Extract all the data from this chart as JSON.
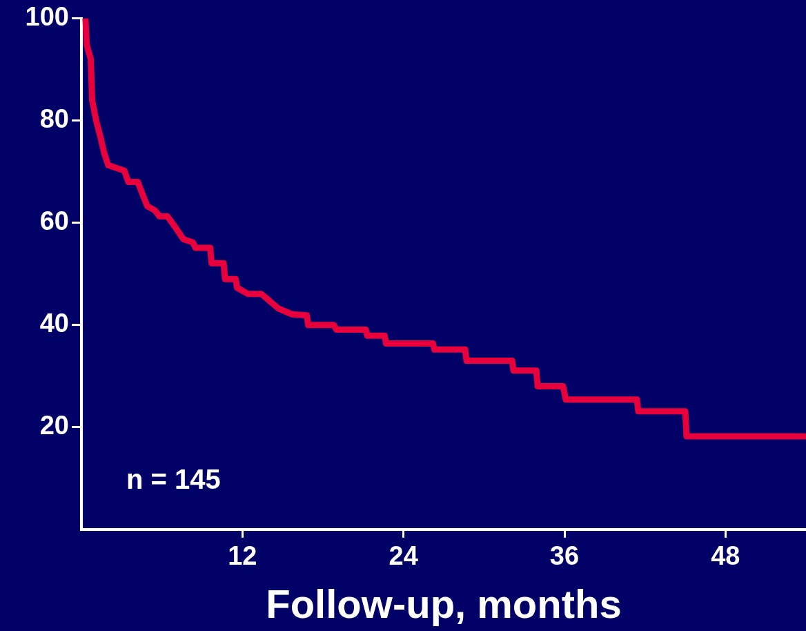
{
  "chart_data": {
    "type": "line",
    "xlabel": "Follow-up, months",
    "annotations": [
      "n = 145"
    ],
    "xlim": [
      0,
      54
    ],
    "xticks": [
      12,
      24,
      36,
      48
    ],
    "ylim": [
      0,
      100
    ],
    "yticks": [
      20,
      40,
      60,
      80,
      100
    ],
    "grid": false,
    "legend": false,
    "marker": "none",
    "line_style": "solid",
    "series": [
      {
        "color": "#e8003c",
        "x": [
          0.3,
          0.4,
          0.7,
          0.8,
          1.1,
          1.4,
          1.7,
          2.0,
          3.2,
          3.5,
          4.2,
          4.9,
          5.5,
          5.8,
          6.4,
          6.9,
          7.6,
          8.3,
          8.5,
          9.6,
          9.7,
          10.6,
          10.7,
          11.5,
          11.6,
          12.4,
          13.4,
          14.7,
          15.7,
          16.8,
          16.9,
          18.8,
          19.0,
          21.2,
          21.3,
          22.6,
          22.7,
          26.2,
          26.3,
          28.6,
          28.7,
          32.1,
          32.2,
          33.9,
          34.0,
          35.9,
          36.1,
          41.4,
          41.5,
          45.0,
          45.1,
          53.9
        ],
        "values": [
          100,
          94.8,
          92,
          84,
          80,
          77,
          73.6,
          71.3,
          70.2,
          68,
          68,
          63.3,
          62.4,
          61.3,
          61.3,
          59.5,
          56.8,
          56.2,
          55.1,
          55.1,
          52.1,
          52.1,
          49,
          49,
          47.3,
          46.1,
          46.1,
          43.2,
          42.1,
          41.9,
          40,
          40,
          39.1,
          39.1,
          37.9,
          37.9,
          36.4,
          36.4,
          35.2,
          35.2,
          33,
          33,
          31.1,
          31.1,
          28,
          28,
          25.4,
          25.4,
          23.1,
          23.1,
          18.2,
          18.2
        ]
      }
    ]
  }
}
